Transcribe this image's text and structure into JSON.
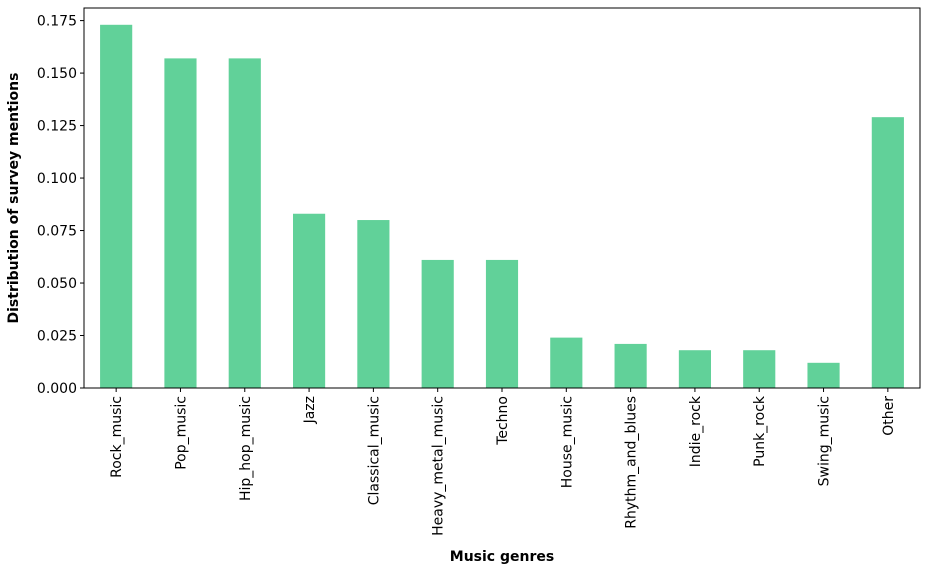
{
  "chart_data": {
    "type": "bar",
    "categories": [
      "Rock_music",
      "Pop_music",
      "Hip_hop_music",
      "Jazz",
      "Classical_music",
      "Heavy_metal_music",
      "Techno",
      "House_music",
      "Rhythm_and_blues",
      "Indie_rock",
      "Punk_rock",
      "Swing_music",
      "Other"
    ],
    "values": [
      0.173,
      0.157,
      0.157,
      0.083,
      0.08,
      0.061,
      0.061,
      0.024,
      0.021,
      0.018,
      0.018,
      0.012,
      0.129
    ],
    "xlabel": "Music genres",
    "ylabel": "Distribution of survey mentions",
    "ylim": [
      0,
      0.181
    ],
    "yticks": [
      0.0,
      0.025,
      0.05,
      0.075,
      0.1,
      0.125,
      0.15,
      0.175
    ],
    "ytick_labels": [
      "0.000",
      "0.025",
      "0.050",
      "0.075",
      "0.100",
      "0.125",
      "0.150",
      "0.175"
    ],
    "grid": false,
    "bar_color": "#61d199"
  }
}
